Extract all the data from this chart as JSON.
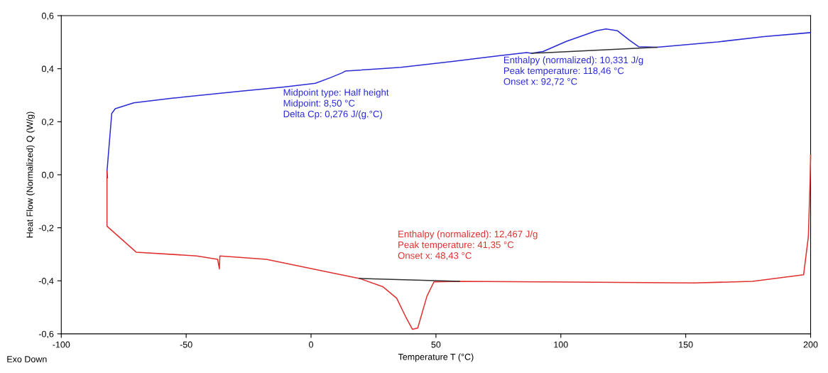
{
  "chart_data": {
    "type": "line",
    "xlabel": "Temperature T (°C)",
    "ylabel": "Heat Flow (Normalized) Q (W/g)",
    "xlim": [
      -100,
      200
    ],
    "ylim": [
      -0.6,
      0.6
    ],
    "xticks": [
      -100,
      -50,
      0,
      50,
      100,
      150,
      200
    ],
    "yticks": [
      {
        "value": -0.6,
        "label": "-0,6"
      },
      {
        "value": -0.4,
        "label": "-0,4"
      },
      {
        "value": -0.2,
        "label": "-0,2"
      },
      {
        "value": 0.0,
        "label": "0,0"
      },
      {
        "value": 0.2,
        "label": "0,2"
      },
      {
        "value": 0.4,
        "label": "0,4"
      },
      {
        "value": 0.6,
        "label": "0,6"
      }
    ],
    "grid": false,
    "legend": false,
    "marker": "none",
    "line_style": "solid",
    "series": [
      {
        "color": "#2b2bd6",
        "x": [
          -81.5,
          -81.7,
          -79.8,
          -78.4,
          -71,
          -55.1,
          -27.2,
          -10.9,
          1.7,
          7.7,
          12.4,
          13.7,
          27.7,
          36,
          56.6,
          75.1,
          86.3,
          88.3,
          92.9,
          102.2,
          114.3,
          118.1,
          122.7,
          127.4,
          131.1,
          138.5,
          162.8,
          181.4,
          199.8
        ],
        "values": [
          -0.011,
          0.012,
          0.231,
          0.249,
          0.271,
          0.289,
          0.316,
          0.331,
          0.345,
          0.366,
          0.384,
          0.391,
          0.4,
          0.405,
          0.427,
          0.449,
          0.461,
          0.458,
          0.465,
          0.503,
          0.543,
          0.55,
          0.543,
          0.508,
          0.483,
          0.481,
          0.501,
          0.521,
          0.536
        ]
      },
      {
        "color": "#e03030",
        "x": [
          -81.7,
          -81.7,
          -70,
          -45.8,
          -37.4,
          -36.7,
          -36.5,
          -17.9,
          0.7,
          10,
          19.4,
          28.7,
          34.3,
          38,
          40.6,
          42.7,
          46.4,
          49.2,
          59.4,
          93.9,
          153.4,
          176.7,
          197.2,
          199.1,
          199.8,
          200
        ],
        "values": [
          0.012,
          -0.194,
          -0.292,
          -0.306,
          -0.319,
          -0.355,
          -0.306,
          -0.319,
          -0.355,
          -0.373,
          -0.391,
          -0.422,
          -0.466,
          -0.538,
          -0.583,
          -0.578,
          -0.458,
          -0.404,
          -0.402,
          -0.404,
          -0.408,
          -0.402,
          -0.377,
          -0.233,
          -0.019,
          0.075
        ]
      },
      {
        "color": "#303030",
        "x": [
          88.3,
          138.5
        ],
        "values": [
          0.458,
          0.481
        ]
      },
      {
        "color": "#303030",
        "x": [
          19.4,
          59.4
        ],
        "values": [
          -0.391,
          -0.402
        ]
      }
    ],
    "annotations": [
      "Midpoint type: Half height\nMidpoint: 8,50 °C\nDelta Cp: 0,276 J/(g.°C)",
      "Enthalpy (normalized): 10,331 J/g\nPeak temperature: 118,46 °C\nOnset x: 92,72 °C",
      "Enthalpy (normalized): 12,467 J/g\nPeak temperature: 41,35 °C\nOnset x: 48,43 °C",
      "Exo Down"
    ]
  }
}
